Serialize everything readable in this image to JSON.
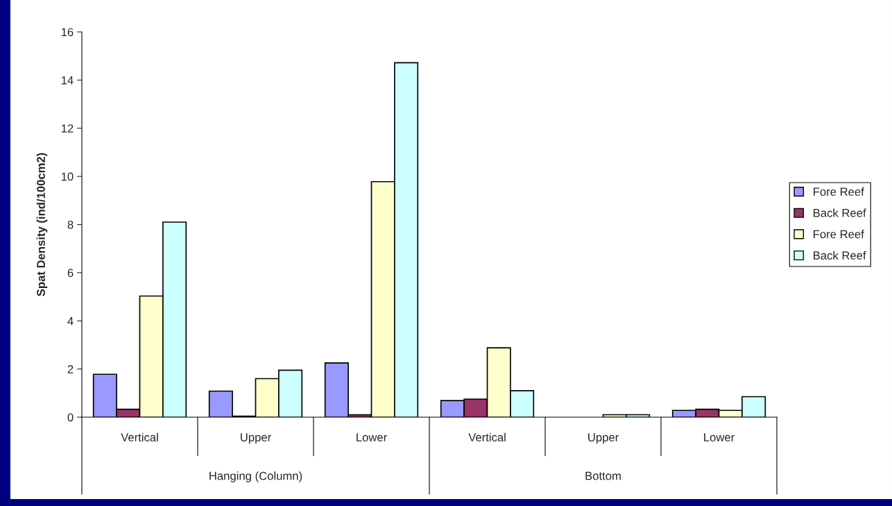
{
  "chart_data": {
    "type": "bar",
    "ylabel": "Spat Density (ind/100cm2)",
    "categories": [
      "Vertical",
      "Upper",
      "Lower",
      "Vertical",
      "Upper",
      "Lower"
    ],
    "series": [
      {
        "name": "Fore Reef",
        "color": "#9999ff",
        "values": [
          1.78,
          1.08,
          2.25,
          0.69,
          0,
          0.28
        ]
      },
      {
        "name": "Back Reef",
        "color": "#993366",
        "values": [
          0.33,
          0.04,
          0.1,
          0.75,
          0,
          0.33
        ]
      },
      {
        "name": "Fore Reef",
        "color": "#ffffcc",
        "values": [
          5.03,
          1.6,
          9.78,
          2.88,
          0.1,
          0.28
        ]
      },
      {
        "name": "Back Reef",
        "color": "#ccffff",
        "values": [
          8.1,
          1.95,
          14.72,
          1.1,
          0.1,
          0.85
        ]
      }
    ],
    "annotations": [
      "Hanging (Column)",
      "Bottom"
    ],
    "ylim": [
      0,
      16
    ],
    "yticks": [
      0,
      2,
      4,
      6,
      8,
      10,
      12,
      14,
      16
    ],
    "grid": false,
    "legend": "right"
  }
}
